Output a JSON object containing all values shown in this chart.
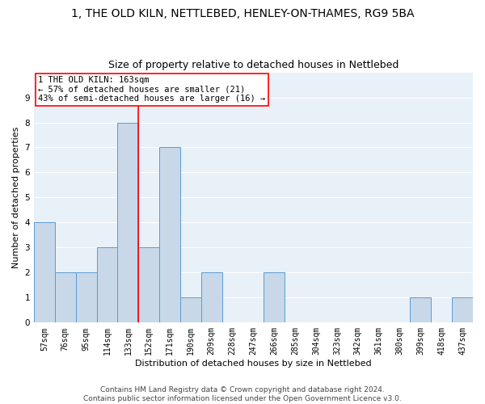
{
  "title": "1, THE OLD KILN, NETTLEBED, HENLEY-ON-THAMES, RG9 5BA",
  "subtitle": "Size of property relative to detached houses in Nettlebed",
  "xlabel": "Distribution of detached houses by size in Nettlebed",
  "ylabel": "Number of detached properties",
  "categories": [
    "57sqm",
    "76sqm",
    "95sqm",
    "114sqm",
    "133sqm",
    "152sqm",
    "171sqm",
    "190sqm",
    "209sqm",
    "228sqm",
    "247sqm",
    "266sqm",
    "285sqm",
    "304sqm",
    "323sqm",
    "342sqm",
    "361sqm",
    "380sqm",
    "399sqm",
    "418sqm",
    "437sqm"
  ],
  "values": [
    4,
    2,
    2,
    3,
    8,
    3,
    7,
    1,
    2,
    0,
    0,
    2,
    0,
    0,
    0,
    0,
    0,
    0,
    1,
    0,
    1
  ],
  "bar_color": "#c8d8e8",
  "bar_edge_color": "#5b9bd5",
  "vline_index": 4,
  "annotation_text_line1": "1 THE OLD KILN: 163sqm",
  "annotation_text_line2": "← 57% of detached houses are smaller (21)",
  "annotation_text_line3": "43% of semi-detached houses are larger (16) →",
  "annotation_box_color": "white",
  "annotation_box_edge_color": "red",
  "vline_color": "red",
  "ylim": [
    0,
    10
  ],
  "yticks": [
    0,
    1,
    2,
    3,
    4,
    5,
    6,
    7,
    8,
    9
  ],
  "background_color": "#e8f0f8",
  "grid_color": "white",
  "title_fontsize": 10,
  "subtitle_fontsize": 9,
  "axis_label_fontsize": 8,
  "tick_fontsize": 7,
  "annotation_fontsize": 7.5,
  "footer_fontsize": 6.5,
  "footer_line1": "Contains HM Land Registry data © Crown copyright and database right 2024.",
  "footer_line2": "Contains public sector information licensed under the Open Government Licence v3.0."
}
